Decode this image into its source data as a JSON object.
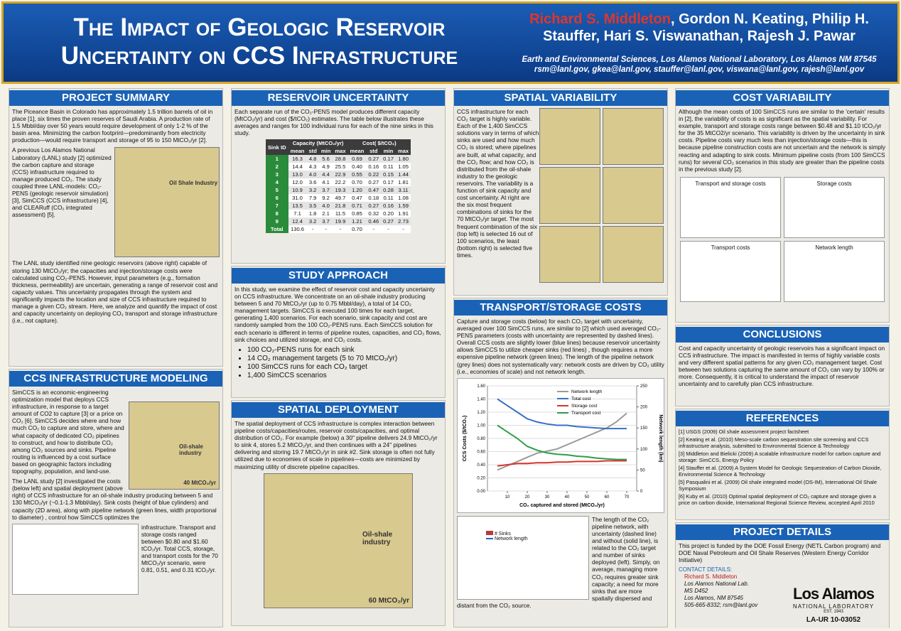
{
  "header": {
    "title": [
      "The Impact of Geologic Reservoir",
      "Uncertainty on CCS Infrastructure"
    ],
    "lead_author": "Richard S. Middleton",
    "other_authors": ", Gordon N. Keating, Philip H. Stauffer, Hari S. Viswanathan, Rajesh J. Pawar",
    "affiliation": "Earth and Environmental Sciences, Los Alamos National Laboratory, Los Alamos NM 87545",
    "emails": "rsm@lanl.gov, gkea@lanl.gov, stauffer@lanl.gov, viswana@lanl.gov, rajesh@lanl.gov"
  },
  "project_summary": {
    "heading": "PROJECT SUMMARY",
    "p1": "The Piceance Basin in Colorado has approximately 1.5 trillion barrels of oil in place [1], six times the proven reserves of Saudi Arabia. A production rate of 1.5 Mbbl/day over 50 years would require development of only 1-2 % of the basin area. Minimizing the carbon footprint—predominantly from electricity production—would require transport and storage of 95 to 150 MtCO₂/yr [2].",
    "p2": "A previous Los Alamos National Laboratory (LANL) study [2] optimized the carbon capture and storage (CCS) infrastructure required to manage produced CO₂. The study coupled three LANL-models: CO₂-PENS (geologic reservoir simulation) [3], SimCCS (CCS infrastructure) [4], and CLEARuff (CO₂ integrated assessment) [5].",
    "map_label": "Oil Shale Industry",
    "p3": "The LANL study identified nine geologic reservoirs (above right) capable of storing 130 MtCO₂/yr; the capacities and injection/storage costs were calculated using CO₂-PENS. However, input parameters (e.g., formation thickness, permeability) are uncertain, generating a range of reservoir cost and capacity values. This uncertainty propagates through the system and significantly impacts the location and size of CCS infrastructure required to manage a given CO₂ stream. Here, we analyze and quantify the impact of cost and capacity uncertainty on deploying CO₂ transport and storage infrastructure (i.e., not capture)."
  },
  "ccs_modeling": {
    "heading": "CCS INFRASTRUCTURE MODELING",
    "p1": "SimCCS is an economic-engineering optimization model that deploys CCS infrastructure, in response to a target amount of CO2 to capture [3] or a price on CO₂ [6]. SimCCS decides where and how much CO₂ to capture and store, where and what capacity of dedicated CO₂ pipelines to construct, and how to distribute CO₂ among CO₂ sources and sinks. Pipeline routing is influenced by a cost surface based on geographic factors including topography, population, and land-use.",
    "map_label": "Oil-shale industry",
    "map_target": "40 MtCO₂/yr",
    "p2": "The LANL study [2] investigated the costs (below left) and spatial deployment (above right) of CCS infrastructure for an oil-shale industry producing between 5 and 130 MtCO₂/yr (~0.1-1.3 Mbbl/day). Sink costs (height of blue cylinders) and capacity (2D area), along with pipeline network (green lines, width proportional to diameter) , control how SimCCS optimizes the",
    "p3": "infrastructure. Transport and storage costs ranged between $0.80 and $1.60 tCO₂/yr. Total CCS, storage, and transport costs for the 70 MtCO₂/yr scenario, were 0.81, 0.51, and 0.31 tCO₂/yr."
  },
  "reservoir_uncertainty": {
    "heading": "RESERVOIR UNCERTAINTY",
    "p1": "Each separate run of the CO₂-PENS model produces different capacity (MtCO₂/yr) and cost ($/tCO₂) estimates. The table below illustrates these averages and ranges for 100 individual runs for each of the nine sinks in this study.",
    "table": {
      "group_headers": [
        "Sink ID",
        "Capacity (MtCO₂/yr)",
        "Cost( $/tCO₂)"
      ],
      "sub_headers": [
        "mean",
        "std",
        "min",
        "max",
        "mean",
        "std",
        "min",
        "max"
      ],
      "rows": [
        [
          "1",
          "16.3",
          "4.8",
          "5.6",
          "28.8",
          "0.69",
          "0.27",
          "0.17",
          "1.80"
        ],
        [
          "2",
          "14.4",
          "4.3",
          "4.9",
          "25.5",
          "0.40",
          "0.16",
          "0.11",
          "1.05"
        ],
        [
          "3",
          "13.0",
          "4.0",
          "4.4",
          "22.9",
          "0.55",
          "0.22",
          "0.15",
          "1.44"
        ],
        [
          "4",
          "12.0",
          "3.6",
          "4.1",
          "22.2",
          "0.70",
          "0.27",
          "0.17",
          "1.81"
        ],
        [
          "5",
          "10.9",
          "3.2",
          "3.7",
          "19.3",
          "1.20",
          "0.47",
          "0.28",
          "3.11"
        ],
        [
          "6",
          "31.0",
          "7.9",
          "9.2",
          "49.7",
          "0.47",
          "0.18",
          "0.11",
          "1.08"
        ],
        [
          "7",
          "13.5",
          "3.5",
          "4.0",
          "21.8",
          "0.71",
          "0.27",
          "0.16",
          "1.59"
        ],
        [
          "8",
          "7.1",
          "1.8",
          "2.1",
          "11.5",
          "0.85",
          "0.32",
          "0.20",
          "1.91"
        ],
        [
          "9",
          "12.4",
          "3.2",
          "3.7",
          "19.9",
          "1.21",
          "0.46",
          "0.27",
          "2.73"
        ],
        [
          "Total",
          "130.6",
          "-",
          "-",
          "-",
          "0.70",
          "-",
          "-",
          "-"
        ]
      ]
    }
  },
  "study_approach": {
    "heading": "STUDY APPROACH",
    "p1": "In this study, we examine the effect of reservoir cost and capacity uncertainty on CCS infrastructure. We concentrate on an oil-shale industry producing between 5 and 70 MtCO₂/yr (up to 0.75 Mbbl/day), a total of 14 CO₂ management targets. SimCCS is executed 100 times for each target, generating 1,400 scenarios. For each scenario, sink capacity and cost are randomly sampled from the 100 CO₂-PENS runs. Each SimCCS solution for each scenario is different in terms of pipeline routes, capacities, and CO₂ flows, sink choices and utilized storage, and CO₂ costs.",
    "bullets": [
      "100 CO₂-PENS runs for each sink",
      "14 CO₂ management targets (5 to 70 MtCO₂/yr)",
      "100 SimCCS runs for each CO₂ target",
      "1,400 SimCCS scenarios"
    ]
  },
  "spatial_deployment": {
    "heading": "SPATIAL DEPLOYMENT",
    "p1": "The spatial deployment of CCS infrastructure is complex interaction between pipeline costs/capacities/routes, reservoir costs/capacities, and optimal distribution of CO₂. For example (below) a 30\" pipeline delivers 24.9 MtCO₂/yr to sink 4, stores 5.2 MtCO₂/yr, and then continues with a 24\" pipelines delivering and storing 19.7 MtCO₂/yr in sink #2. Sink storage is often not fully utilized due to economies of scale in pipelines—costs are minimized by maximizing utility of discrete pipeline capacities.",
    "map_label": "Oil-shale industry",
    "map_target": "60 MtCO₂/yr"
  },
  "spatial_variability": {
    "heading": "SPATIAL VARIABILITY",
    "p1": "CCS infrastructure for each CO₂ target is highly variable. Each of the 1,400 SimCCS solutions vary in terms of which sinks are used and how much CO₂ is stored; where pipelines are built, at what capacity, and the CO₂ flow; and how CO₂ is distributed from the oil-shale industry to the geologic reservoirs. The variability is a function of sink capacity and cost uncertainty. At right are the six most frequent combinations of sinks for the 70 MtCO₂/yr target. The most frequent combination of the six (top left) is selected 16 out of 100 scenarios, the least (bottom right) is selected five times."
  },
  "transport_storage": {
    "heading": "TRANSPORT/STORAGE COSTS",
    "p1": "Capture and storage costs (below) for each CO₂ target with uncertainty, averaged over 100 SimCCS runs, are similar to [2] which used averaged CO₂-PENS parameters (costs with uncertainty are represented by dashed lines). Overall CCS costs are slightly lower (blue lines) because reservoir uncertainty allows SimCCS to utilize cheaper sinks (red lines) , though requires a more expensive pipeline network (green lines). The length of the pipeline network (grey lines) does not systematically vary: network costs are driven by CO₂ utility (i.e., economies of scale) and not network length.",
    "p2": "The length of the CO₂ pipeline network, with uncertainty (dashed line) and without (solid line), is related to the CO₂ target and number of sinks deployed (left). Simply, on average, managing more CO₂ requires greater sink capacity; a need for more sinks that are more spatially dispersed and distant from the CO₂ source.",
    "small_legend": [
      "# Sinks",
      "Network length"
    ]
  },
  "cost_variability": {
    "heading": "COST VARIABILITY",
    "p1": "Although the mean costs of 100 SimCCS runs are similar to the 'certain' results in [2], the variability of costs is as significant as the spatial variability. For example, transport and storage costs range between $0.48 and $1.10 tCO₂/yr for the 35 MtCO2/yr scenario. This variability is driven by the uncertainty in sink costs. Pipeline costs vary much less than injection/storage costs—this is because pipeline construction costs are not uncertain and the network is simply reacting and adapting to sink costs. Minimum pipeline costs (from 100 SimCCS runs) for several CO₂ scenarios in this study are greater than the pipeline costs in the previous study [2].",
    "panels": [
      "Transport and storage costs",
      "Storage costs",
      "Transport costs",
      "Network length"
    ]
  },
  "conclusions": {
    "heading": "CONCLUSIONS",
    "p1": "Cost and capacity uncertainty of geologic reservoirs has a significant impact on CCS infrastructure. The impact is manifested in terms of highly variable costs and very different spatial patterns for any given CO₂ management target. Cost between two solutions capturing the same amount of CO₂ can vary by 100% or more. Consequently, it is critical to understand the impact of reservoir uncertainty and to carefully plan CCS infrastructure."
  },
  "references": {
    "heading": "REFERENCES",
    "items": [
      "[1] USGS (2009) Oil shale assessment project factsheet",
      "[2] Keating et al. (2010) Meso-scale carbon sequestration site screening and CCS infrastructure analysis, submitted to Environmental Science & Technology",
      "[3] Middleton and Bielicki (2009) A scalable infrastructure model for carbon capture and storage: SimCCS, Energy Policy",
      "[4] Stauffer et al. (2009) A System Model for Geologic Sequestration of Carbon Dioxide, Environmental Science & Technology",
      "[5] Pasqualini et al. (2009) Oil shale integrated model (OS-IM), International Oil Shale Symposium",
      "[6] Kuby et al. (2010) Optimal spatial deployment of CO₂ capture and storage given a price on carbon dioxide, International Regional Science Review, accepted April 2010"
    ]
  },
  "project_details": {
    "heading": "PROJECT DETAILS",
    "p1": "This project is funded by the DOE Fossil Energy (NETL Carbon program) and DOE Naval Petroleum and Oil Shale Reserves (Western Energy Corridor Initiative)",
    "contact_heading": "CONTACT DETAILS:",
    "contact_name": "Richard S. Middleton",
    "contact_lines": [
      "Los Alamos National Lab.",
      "MS D452",
      "Los Alamos, NM 87545",
      "505-665-8332; rsm@lanl.gov"
    ],
    "logo_name": "Los Alamos",
    "logo_sub": "NATIONAL LABORATORY",
    "logo_est": "EST. 1943",
    "report_number": "LA-UR 10-03052"
  },
  "chart_data": {
    "type": "line",
    "xlabel": "CO₂ captured and stored (MtCO₂/yr)",
    "ylabel": "CCS Costs ($/tCO₂)",
    "y2label": "Network length (km)",
    "x": [
      5,
      10,
      15,
      20,
      25,
      30,
      35,
      40,
      45,
      50,
      55,
      60,
      65,
      70
    ],
    "xlim": [
      0,
      75
    ],
    "xticks": [
      10,
      20,
      30,
      40,
      50,
      60,
      70
    ],
    "ylim": [
      0,
      1.6
    ],
    "yticks": [
      {
        "value": 0,
        "label": "0.00"
      },
      {
        "value": 0.2,
        "label": "0.20"
      },
      {
        "value": 0.4,
        "label": "0.40"
      },
      {
        "value": 0.6,
        "label": "0.60"
      },
      {
        "value": 0.8,
        "label": "0.80"
      },
      {
        "value": 1,
        "label": "1.00"
      },
      {
        "value": 1.2,
        "label": "1.20"
      },
      {
        "value": 1.4,
        "label": "1.40"
      },
      {
        "value": 1.6,
        "label": "1.60"
      }
    ],
    "y2lim": [
      0,
      250
    ],
    "y2ticks": [
      0,
      50,
      100,
      150,
      200,
      250
    ],
    "series": [
      {
        "name": "Network length",
        "color": "#9a9a9a",
        "axis": "y2",
        "values": [
          50,
          60,
          70,
          80,
          90,
          95,
          100,
          110,
          120,
          130,
          140,
          150,
          165,
          185
        ]
      },
      {
        "name": "Total cost",
        "color": "#3a6fc4",
        "values": [
          1.4,
          1.3,
          1.2,
          1.1,
          1.05,
          1.02,
          1,
          1,
          0.98,
          0.97,
          0.96,
          0.95,
          0.95,
          0.95
        ]
      },
      {
        "name": "Storage cost",
        "color": "#d6352c",
        "values": [
          0.38,
          0.4,
          0.42,
          0.42,
          0.43,
          0.43,
          0.44,
          0.44,
          0.45,
          0.45,
          0.45,
          0.46,
          0.46,
          0.46
        ]
      },
      {
        "name": "Transport cost",
        "color": "#2e9e4c",
        "values": [
          1,
          0.9,
          0.8,
          0.68,
          0.62,
          0.58,
          0.56,
          0.55,
          0.53,
          0.52,
          0.5,
          0.49,
          0.48,
          0.48
        ]
      }
    ]
  }
}
